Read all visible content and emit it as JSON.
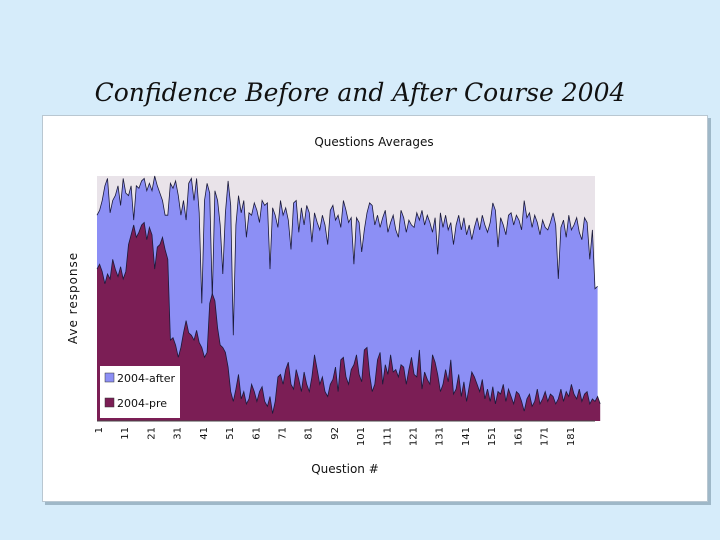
{
  "slide": {
    "title": "Confidence Before and After Course 2004"
  },
  "colors": {
    "background": "#d6ecfa",
    "plot_background": "#e9e3e9",
    "after": "#8c8ff5",
    "pre": "#7b1e55"
  },
  "chart_data": {
    "type": "area",
    "title": "Questions Averages",
    "xlabel": "Question #",
    "ylabel": "Ave response",
    "x_tick_labels": [
      "1",
      "11",
      "21",
      "31",
      "41",
      "51",
      "61",
      "71",
      "81",
      "92",
      "101",
      "111",
      "121",
      "131",
      "141",
      "151",
      "161",
      "171",
      "181"
    ],
    "xlim": [
      1,
      191
    ],
    "ylim": [
      0,
      1
    ],
    "grid": false,
    "legend_position": "lower-left inside plot",
    "series": [
      {
        "name": "2004-after",
        "values": [
          0.84,
          0.86,
          0.9,
          0.96,
          0.99,
          0.85,
          0.9,
          0.92,
          0.96,
          0.88,
          0.99,
          0.93,
          0.92,
          0.96,
          0.82,
          0.96,
          0.95,
          0.98,
          0.99,
          0.94,
          0.97,
          0.94,
          1.0,
          0.96,
          0.93,
          0.9,
          0.84,
          0.84,
          0.97,
          0.95,
          0.98,
          0.92,
          0.84,
          0.9,
          0.82,
          0.97,
          0.99,
          0.9,
          0.99,
          0.85,
          0.48,
          0.9,
          0.97,
          0.93,
          0.5,
          0.94,
          0.9,
          0.8,
          0.6,
          0.85,
          0.98,
          0.88,
          0.35,
          0.8,
          0.92,
          0.85,
          0.9,
          0.75,
          0.85,
          0.84,
          0.89,
          0.86,
          0.81,
          0.9,
          0.88,
          0.89,
          0.62,
          0.87,
          0.84,
          0.79,
          0.9,
          0.84,
          0.87,
          0.82,
          0.7,
          0.89,
          0.9,
          0.77,
          0.87,
          0.8,
          0.88,
          0.85,
          0.73,
          0.85,
          0.81,
          0.78,
          0.84,
          0.8,
          0.72,
          0.86,
          0.88,
          0.82,
          0.84,
          0.79,
          0.9,
          0.86,
          0.81,
          0.83,
          0.64,
          0.83,
          0.81,
          0.69,
          0.78,
          0.85,
          0.89,
          0.88,
          0.8,
          0.84,
          0.79,
          0.83,
          0.86,
          0.77,
          0.81,
          0.84,
          0.78,
          0.75,
          0.86,
          0.83,
          0.77,
          0.82,
          0.8,
          0.79,
          0.85,
          0.82,
          0.86,
          0.8,
          0.84,
          0.81,
          0.77,
          0.83,
          0.68,
          0.85,
          0.79,
          0.84,
          0.78,
          0.81,
          0.72,
          0.8,
          0.84,
          0.78,
          0.83,
          0.76,
          0.8,
          0.74,
          0.79,
          0.83,
          0.78,
          0.84,
          0.8,
          0.77,
          0.81,
          0.89,
          0.86,
          0.71,
          0.83,
          0.8,
          0.76,
          0.84,
          0.85,
          0.8,
          0.84,
          0.82,
          0.78,
          0.9,
          0.83,
          0.85,
          0.79,
          0.84,
          0.81,
          0.76,
          0.82,
          0.79,
          0.78,
          0.81,
          0.85,
          0.8,
          0.58,
          0.79,
          0.82,
          0.75,
          0.84,
          0.78,
          0.8,
          0.83,
          0.77,
          0.74,
          0.83,
          0.81,
          0.66,
          0.78,
          0.54,
          0.55
        ]
      },
      {
        "name": "2004-pre",
        "values": [
          0.62,
          0.64,
          0.61,
          0.56,
          0.6,
          0.58,
          0.66,
          0.62,
          0.59,
          0.63,
          0.58,
          0.61,
          0.72,
          0.76,
          0.8,
          0.75,
          0.77,
          0.8,
          0.81,
          0.74,
          0.79,
          0.76,
          0.62,
          0.71,
          0.72,
          0.75,
          0.7,
          0.66,
          0.33,
          0.34,
          0.31,
          0.26,
          0.3,
          0.36,
          0.41,
          0.36,
          0.35,
          0.33,
          0.37,
          0.32,
          0.3,
          0.26,
          0.28,
          0.48,
          0.52,
          0.49,
          0.38,
          0.31,
          0.3,
          0.28,
          0.22,
          0.12,
          0.08,
          0.13,
          0.19,
          0.09,
          0.12,
          0.07,
          0.09,
          0.15,
          0.12,
          0.08,
          0.12,
          0.14,
          0.08,
          0.06,
          0.1,
          0.03,
          0.08,
          0.18,
          0.19,
          0.15,
          0.21,
          0.24,
          0.15,
          0.13,
          0.21,
          0.17,
          0.12,
          0.2,
          0.15,
          0.12,
          0.18,
          0.27,
          0.21,
          0.15,
          0.18,
          0.12,
          0.1,
          0.15,
          0.17,
          0.22,
          0.12,
          0.25,
          0.26,
          0.18,
          0.15,
          0.21,
          0.23,
          0.27,
          0.19,
          0.16,
          0.29,
          0.3,
          0.19,
          0.12,
          0.15,
          0.25,
          0.28,
          0.15,
          0.23,
          0.19,
          0.27,
          0.2,
          0.21,
          0.18,
          0.23,
          0.22,
          0.15,
          0.21,
          0.26,
          0.19,
          0.18,
          0.29,
          0.13,
          0.2,
          0.17,
          0.15,
          0.27,
          0.24,
          0.19,
          0.12,
          0.15,
          0.21,
          0.16,
          0.25,
          0.11,
          0.13,
          0.19,
          0.1,
          0.16,
          0.08,
          0.14,
          0.2,
          0.18,
          0.15,
          0.12,
          0.17,
          0.09,
          0.13,
          0.08,
          0.14,
          0.07,
          0.12,
          0.11,
          0.15,
          0.08,
          0.13,
          0.1,
          0.07,
          0.12,
          0.11,
          0.08,
          0.04,
          0.09,
          0.11,
          0.06,
          0.08,
          0.13,
          0.07,
          0.09,
          0.12,
          0.08,
          0.11,
          0.1,
          0.07,
          0.09,
          0.13,
          0.08,
          0.12,
          0.1,
          0.15,
          0.11,
          0.09,
          0.13,
          0.08,
          0.11,
          0.12,
          0.07,
          0.09,
          0.08,
          0.1,
          0.07
        ]
      }
    ]
  }
}
